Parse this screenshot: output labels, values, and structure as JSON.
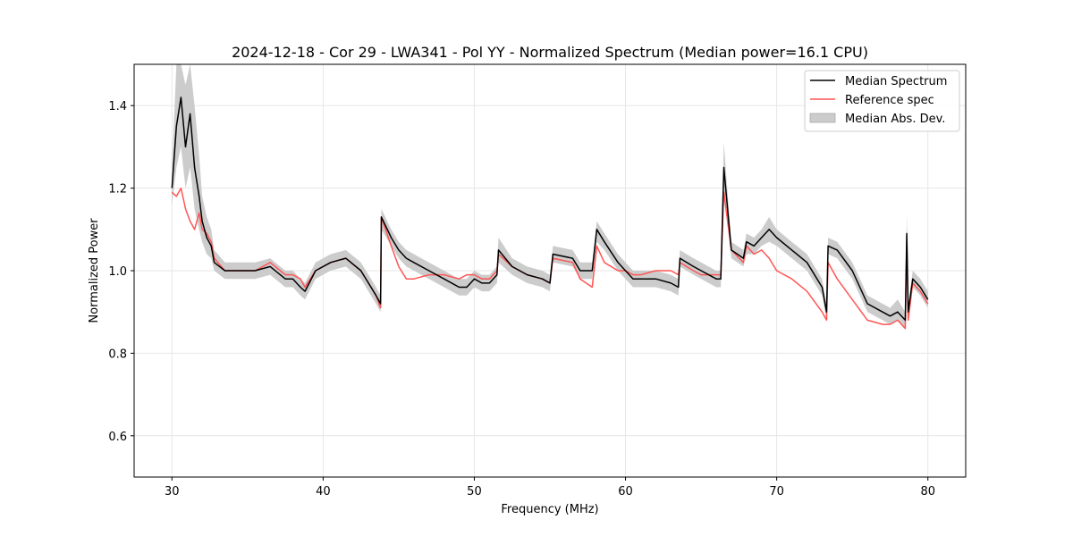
{
  "chart_data": {
    "type": "line",
    "title": "2024-12-18 - Cor 29 - LWA341 - Pol YY - Normalized Spectrum (Median power=16.1 CPU)",
    "xlabel": "Frequency (MHz)",
    "ylabel": "Normalized Power",
    "xlim": [
      27.5,
      82.5
    ],
    "ylim": [
      0.5,
      1.5
    ],
    "xticks": [
      30,
      40,
      50,
      60,
      70,
      80
    ],
    "yticks": [
      0.6,
      0.8,
      1.0,
      1.2,
      1.4
    ],
    "xtick_labels": [
      "30",
      "40",
      "50",
      "60",
      "70",
      "80"
    ],
    "ytick_labels": [
      "0.6",
      "0.8",
      "1.0",
      "1.2",
      "1.4"
    ],
    "grid": true,
    "legend_position": "top-right",
    "series": [
      {
        "name": "Median Spectrum",
        "color": "#000000",
        "x": [
          30.0,
          30.3,
          30.6,
          30.9,
          31.2,
          31.5,
          31.8,
          32.0,
          32.3,
          32.6,
          32.8,
          33.5,
          34.5,
          35.5,
          36.5,
          37.5,
          38.0,
          38.5,
          38.8,
          39.5,
          40.5,
          41.5,
          42.5,
          43.0,
          43.5,
          43.8,
          43.85,
          44.5,
          45.0,
          45.5,
          46.0,
          47.0,
          48.0,
          49.0,
          49.5,
          50.0,
          50.5,
          51.0,
          51.5,
          51.6,
          52.5,
          53.5,
          54.5,
          55.0,
          55.2,
          56.5,
          57.0,
          57.8,
          58.1,
          58.6,
          59.5,
          60.0,
          60.5,
          61.0,
          62.0,
          63.0,
          63.5,
          63.6,
          64.5,
          65.0,
          66.0,
          66.3,
          66.5,
          67.0,
          67.8,
          68.0,
          68.5,
          69.0,
          69.5,
          70.0,
          71.0,
          72.0,
          73.0,
          73.3,
          73.4,
          74.0,
          75.0,
          76.0,
          77.0,
          77.5,
          78.0,
          78.5,
          78.6,
          78.7,
          79.0,
          79.5,
          80.0
        ],
        "values": [
          1.2,
          1.35,
          1.42,
          1.3,
          1.38,
          1.25,
          1.18,
          1.12,
          1.08,
          1.06,
          1.02,
          1.0,
          1.0,
          1.0,
          1.01,
          0.98,
          0.98,
          0.96,
          0.95,
          1.0,
          1.02,
          1.03,
          1.0,
          0.97,
          0.94,
          0.92,
          1.13,
          1.08,
          1.05,
          1.03,
          1.02,
          1.0,
          0.98,
          0.96,
          0.96,
          0.98,
          0.97,
          0.97,
          0.99,
          1.05,
          1.01,
          0.99,
          0.98,
          0.97,
          1.04,
          1.03,
          1.0,
          1.0,
          1.1,
          1.07,
          1.02,
          1.0,
          0.98,
          0.98,
          0.98,
          0.97,
          0.96,
          1.03,
          1.01,
          1.0,
          0.98,
          0.98,
          1.25,
          1.05,
          1.03,
          1.07,
          1.06,
          1.08,
          1.1,
          1.08,
          1.05,
          1.02,
          0.96,
          0.9,
          1.06,
          1.05,
          1.0,
          0.92,
          0.9,
          0.89,
          0.9,
          0.88,
          1.09,
          0.9,
          0.98,
          0.96,
          0.93
        ]
      },
      {
        "name": "Reference spec",
        "color": "#ff5555",
        "x": [
          30.0,
          30.3,
          30.6,
          30.9,
          31.2,
          31.5,
          31.8,
          32.0,
          32.3,
          32.6,
          32.8,
          33.5,
          34.5,
          35.5,
          36.5,
          37.5,
          38.0,
          38.5,
          38.8,
          39.5,
          40.5,
          41.5,
          42.5,
          43.0,
          43.5,
          43.8,
          43.85,
          44.5,
          45.0,
          45.5,
          46.0,
          47.0,
          48.0,
          49.0,
          49.5,
          50.0,
          50.5,
          51.0,
          51.5,
          51.6,
          52.5,
          53.5,
          54.5,
          55.0,
          55.2,
          56.5,
          57.0,
          57.8,
          58.1,
          58.6,
          59.5,
          60.0,
          60.5,
          61.0,
          62.0,
          63.0,
          63.5,
          63.6,
          64.5,
          65.0,
          66.0,
          66.3,
          66.5,
          67.0,
          67.8,
          68.0,
          68.5,
          69.0,
          69.5,
          70.0,
          71.0,
          72.0,
          73.0,
          73.3,
          73.4,
          74.0,
          75.0,
          76.0,
          77.0,
          77.5,
          78.0,
          78.5,
          78.6,
          78.7,
          79.0,
          79.5,
          80.0
        ],
        "values": [
          1.19,
          1.18,
          1.2,
          1.15,
          1.12,
          1.1,
          1.14,
          1.1,
          1.09,
          1.07,
          1.03,
          1.0,
          1.0,
          1.0,
          1.02,
          0.99,
          0.99,
          0.98,
          0.96,
          1.0,
          1.02,
          1.03,
          1.0,
          0.97,
          0.94,
          0.91,
          1.13,
          1.06,
          1.01,
          0.98,
          0.98,
          0.99,
          0.99,
          0.98,
          0.99,
          0.99,
          0.98,
          0.98,
          1.0,
          1.04,
          1.01,
          0.99,
          0.98,
          0.97,
          1.03,
          1.02,
          0.98,
          0.96,
          1.06,
          1.02,
          1.0,
          1.0,
          0.99,
          0.99,
          1.0,
          1.0,
          0.99,
          1.02,
          1.0,
          0.99,
          0.99,
          0.99,
          1.19,
          1.05,
          1.02,
          1.06,
          1.04,
          1.05,
          1.03,
          1.0,
          0.98,
          0.95,
          0.9,
          0.88,
          1.02,
          0.98,
          0.93,
          0.88,
          0.87,
          0.87,
          0.88,
          0.86,
          1.07,
          0.88,
          0.97,
          0.95,
          0.92
        ]
      }
    ],
    "band": {
      "name": "Median Abs. Dev.",
      "color": "#cccccc",
      "x": [
        30.0,
        30.3,
        30.6,
        30.9,
        31.2,
        31.5,
        31.8,
        32.0,
        32.3,
        32.6,
        32.8,
        33.5,
        34.5,
        35.5,
        36.5,
        37.5,
        38.0,
        38.5,
        38.8,
        39.5,
        40.5,
        41.5,
        42.5,
        43.0,
        43.5,
        43.8,
        43.85,
        44.5,
        45.0,
        45.5,
        46.0,
        47.0,
        48.0,
        49.0,
        49.5,
        50.0,
        50.5,
        51.0,
        51.5,
        51.6,
        52.5,
        53.5,
        54.5,
        55.0,
        55.2,
        56.5,
        57.0,
        57.8,
        58.1,
        58.6,
        59.5,
        60.0,
        60.5,
        61.0,
        62.0,
        63.0,
        63.5,
        63.6,
        64.5,
        65.0,
        66.0,
        66.3,
        66.5,
        67.0,
        67.8,
        68.0,
        68.5,
        69.0,
        69.5,
        70.0,
        71.0,
        72.0,
        73.0,
        73.3,
        73.4,
        74.0,
        75.0,
        76.0,
        77.0,
        77.5,
        78.0,
        78.5,
        78.6,
        78.7,
        79.0,
        79.5,
        80.0
      ],
      "lower": [
        1.16,
        1.25,
        1.3,
        1.2,
        1.25,
        1.15,
        1.1,
        1.07,
        1.04,
        1.03,
        1.0,
        0.98,
        0.98,
        0.98,
        0.99,
        0.96,
        0.96,
        0.94,
        0.93,
        0.98,
        1.0,
        1.01,
        0.98,
        0.95,
        0.92,
        0.9,
        1.1,
        1.06,
        1.03,
        1.01,
        1.0,
        0.98,
        0.96,
        0.94,
        0.94,
        0.96,
        0.95,
        0.95,
        0.97,
        1.02,
        0.99,
        0.97,
        0.96,
        0.95,
        1.02,
        1.01,
        0.98,
        0.98,
        1.07,
        1.05,
        1.0,
        0.98,
        0.96,
        0.96,
        0.96,
        0.95,
        0.94,
        1.01,
        0.99,
        0.98,
        0.96,
        0.96,
        1.2,
        1.03,
        1.01,
        1.04,
        1.04,
        1.06,
        1.07,
        1.06,
        1.03,
        1.0,
        0.94,
        0.88,
        1.04,
        1.03,
        0.98,
        0.9,
        0.88,
        0.87,
        0.88,
        0.86,
        1.05,
        0.88,
        0.96,
        0.94,
        0.91
      ],
      "upper": [
        1.25,
        1.5,
        1.5,
        1.45,
        1.5,
        1.4,
        1.28,
        1.18,
        1.13,
        1.1,
        1.05,
        1.02,
        1.02,
        1.02,
        1.03,
        1.0,
        1.0,
        0.98,
        0.97,
        1.02,
        1.04,
        1.05,
        1.02,
        0.99,
        0.96,
        0.94,
        1.15,
        1.1,
        1.07,
        1.05,
        1.04,
        1.02,
        1.0,
        0.98,
        0.98,
        1.0,
        0.99,
        0.99,
        1.01,
        1.08,
        1.03,
        1.01,
        1.0,
        0.99,
        1.06,
        1.05,
        1.02,
        1.02,
        1.12,
        1.09,
        1.04,
        1.02,
        1.0,
        1.0,
        1.0,
        0.99,
        0.98,
        1.05,
        1.03,
        1.02,
        1.0,
        1.0,
        1.31,
        1.07,
        1.05,
        1.09,
        1.08,
        1.1,
        1.13,
        1.1,
        1.07,
        1.04,
        0.98,
        0.92,
        1.08,
        1.07,
        1.02,
        0.94,
        0.92,
        0.91,
        0.93,
        0.9,
        1.14,
        0.92,
        1.0,
        0.98,
        0.95
      ]
    }
  }
}
